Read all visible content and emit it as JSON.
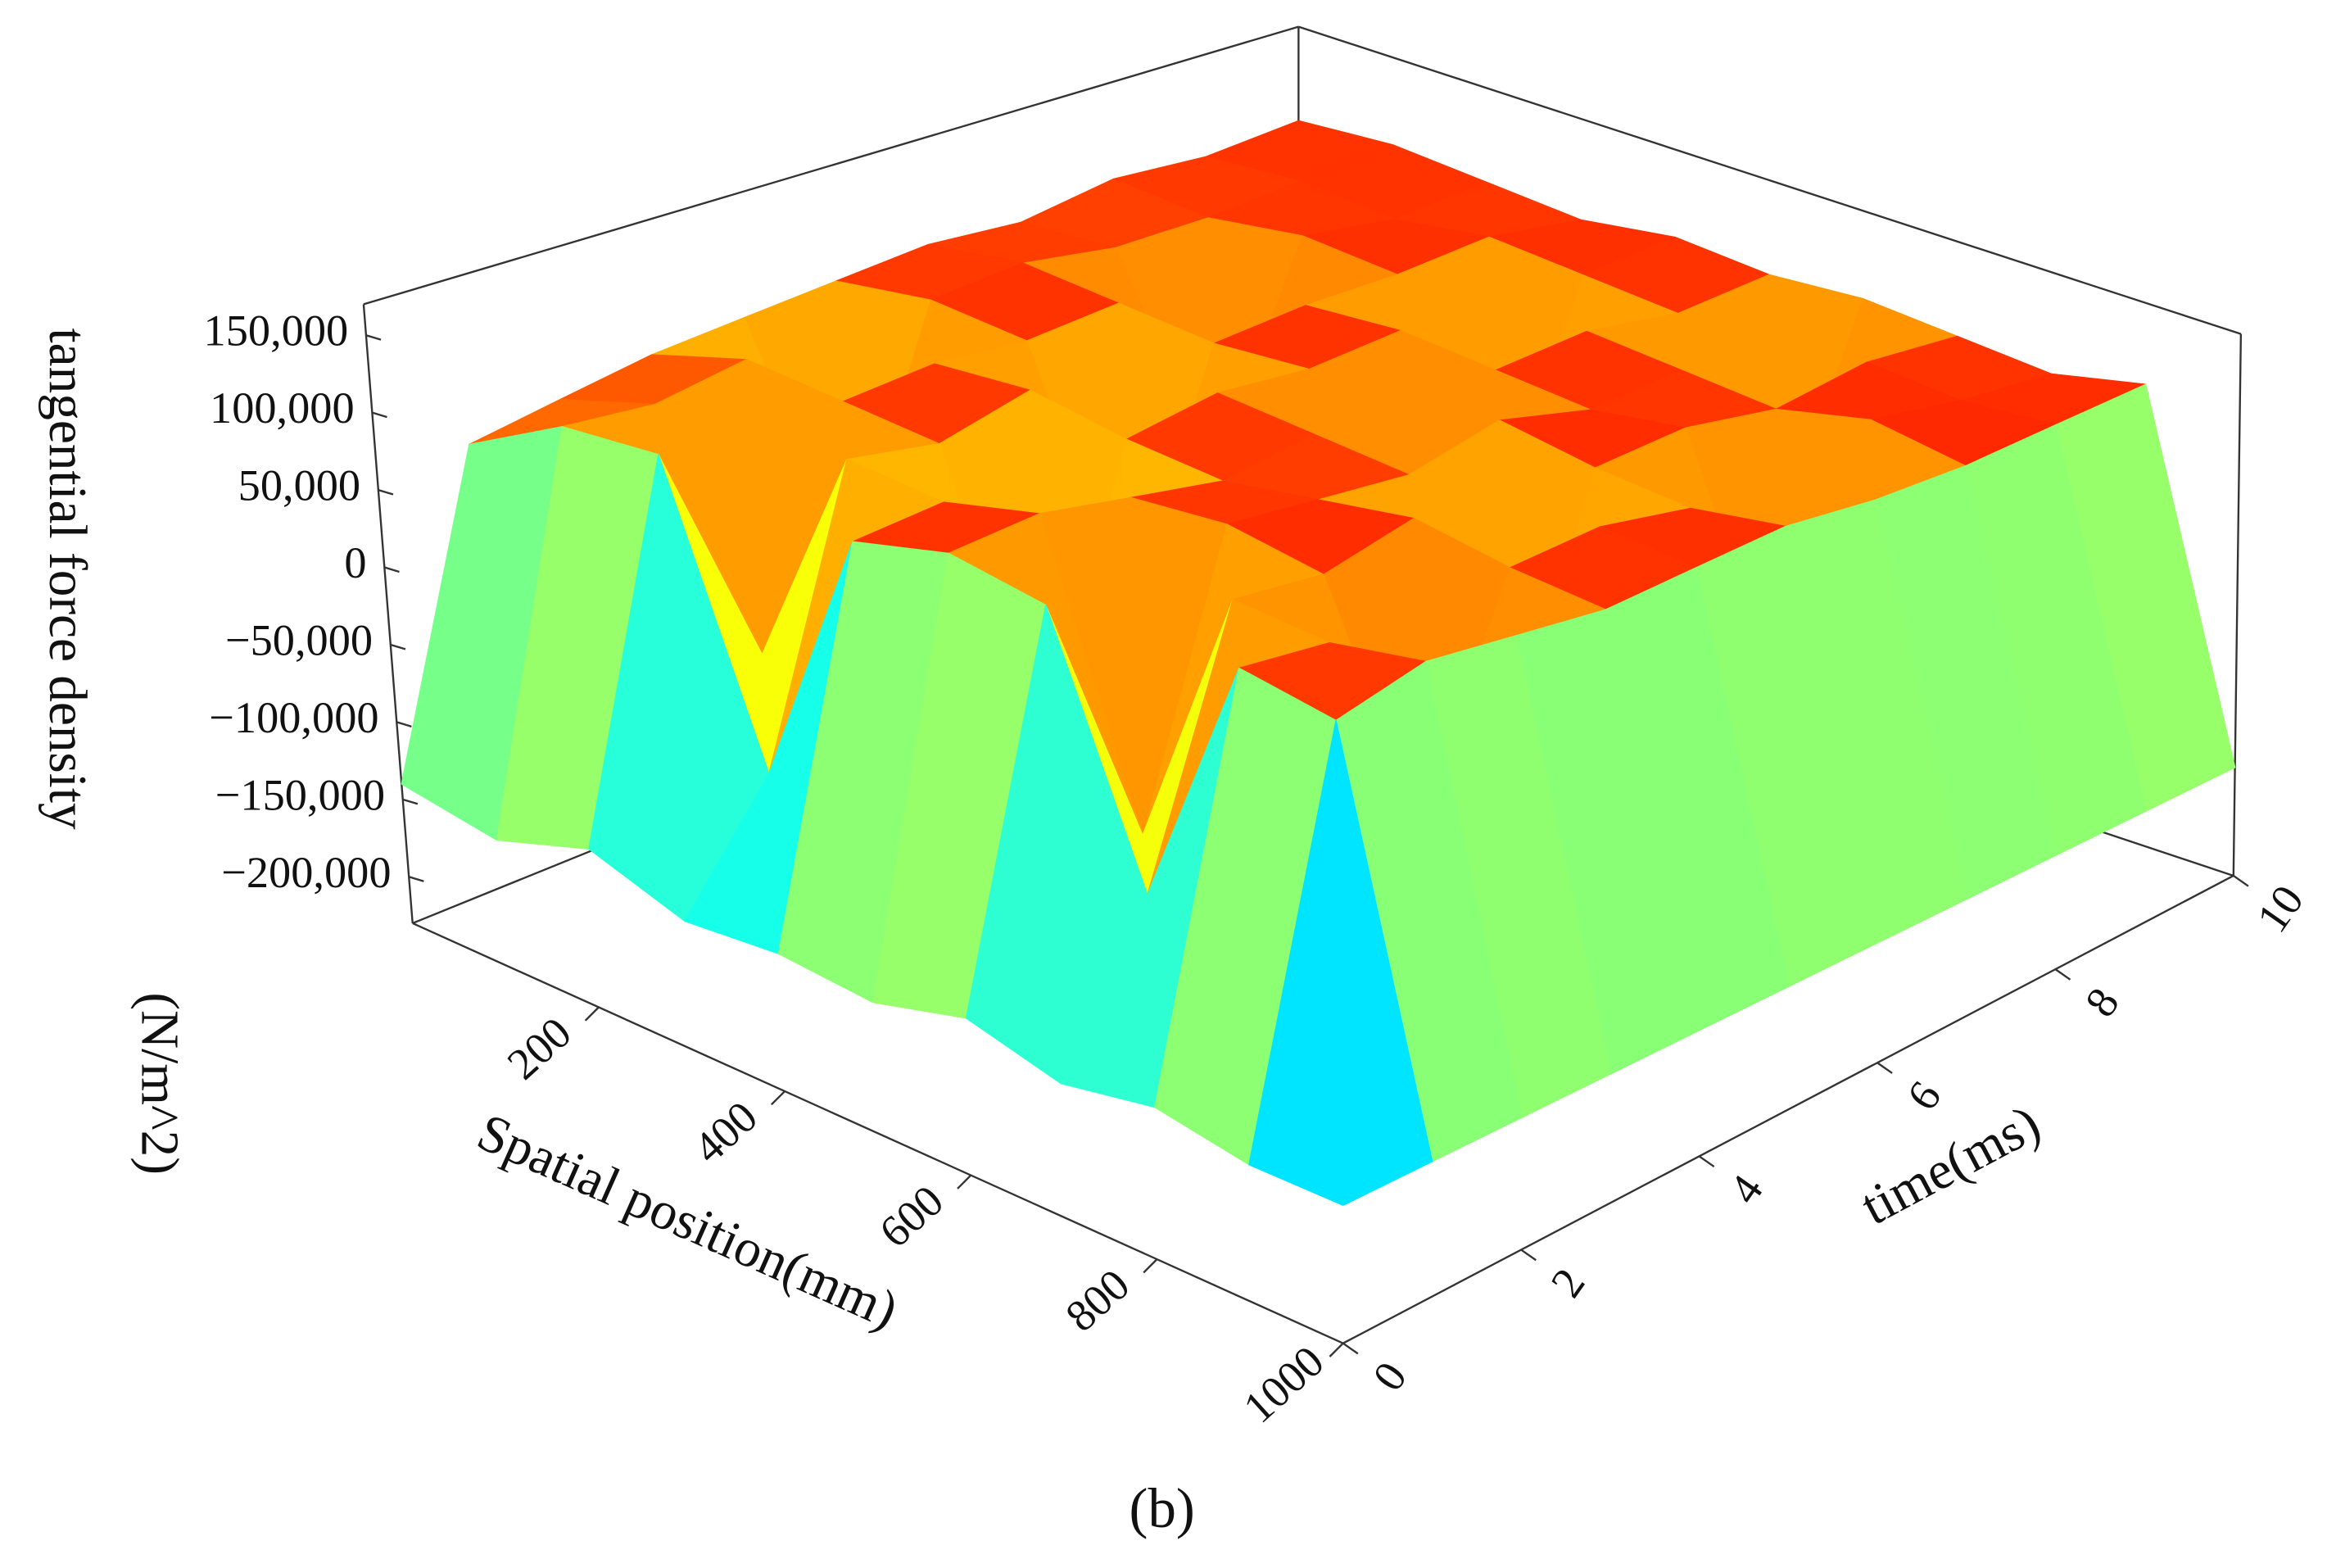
{
  "chart_data": {
    "type": "surface3d",
    "caption": "(b)",
    "zlabel": "tangential force density",
    "zunit": "(N/m^2)",
    "xlabel": "Spatial position(mm)",
    "ylabel": "time(ms)",
    "colormap": "jet",
    "x": [
      0,
      100,
      200,
      300,
      400,
      500,
      600,
      700,
      800,
      900,
      1000
    ],
    "y": [
      0,
      1,
      2,
      3,
      4,
      5,
      6,
      7,
      8,
      9,
      10
    ],
    "z": [
      [
        -140000,
        -150000,
        -130000,
        -150000,
        -145000,
        -150000,
        -135000,
        -150000,
        -140000,
        -150000,
        -150000
      ],
      [
        60000,
        95000,
        100000,
        -80000,
        90000,
        105000,
        95000,
        -60000,
        100000,
        90000,
        -150000
      ],
      [
        70000,
        90000,
        -50000,
        100000,
        95000,
        110000,
        -70000,
        100000,
        95000,
        105000,
        -150000
      ],
      [
        80000,
        100000,
        95000,
        90000,
        -90000,
        100000,
        105000,
        95000,
        -40000,
        100000,
        -150000
      ],
      [
        85000,
        -60000,
        100000,
        105000,
        95000,
        90000,
        100000,
        110000,
        100000,
        95000,
        -150000
      ],
      [
        90000,
        100000,
        95000,
        -70000,
        105000,
        100000,
        95000,
        -80000,
        105000,
        100000,
        -150000
      ],
      [
        95000,
        105000,
        100000,
        95000,
        100000,
        -50000,
        110000,
        100000,
        95000,
        105000,
        -150000
      ],
      [
        90000,
        95000,
        -40000,
        100000,
        105000,
        100000,
        95000,
        105000,
        -60000,
        100000,
        -150000
      ],
      [
        100000,
        95000,
        105000,
        100000,
        -70000,
        105000,
        100000,
        95000,
        110000,
        100000,
        -150000
      ],
      [
        95000,
        100000,
        95000,
        105000,
        100000,
        95000,
        -60000,
        105000,
        100000,
        105000,
        -150000
      ],
      [
        100000,
        105000,
        100000,
        95000,
        105000,
        100000,
        105000,
        100000,
        95000,
        110000,
        -150000
      ]
    ],
    "xlim": [
      0,
      1000
    ],
    "ylim": [
      0,
      10
    ],
    "zlim": [
      -230000,
      170000
    ],
    "xticks": [
      200,
      400,
      600,
      800,
      1000
    ],
    "yticks": [
      0,
      2,
      4,
      6,
      8,
      10
    ],
    "zticks": [
      {
        "value": -200000,
        "label": "−200,000"
      },
      {
        "value": -150000,
        "label": "−150,000"
      },
      {
        "value": -100000,
        "label": "−100,000"
      },
      {
        "value": -50000,
        "label": "−50,000"
      },
      0,
      {
        "value": 50000,
        "label": "50,000"
      },
      {
        "value": 100000,
        "label": "100,000"
      },
      {
        "value": 150000,
        "label": "150,000"
      }
    ]
  }
}
